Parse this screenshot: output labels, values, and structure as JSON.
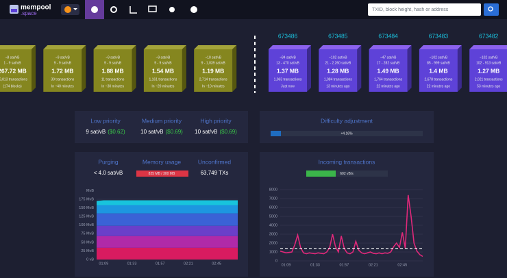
{
  "header": {
    "logo": {
      "name": "mempool",
      "suffix": ".space"
    },
    "search_placeholder": "TXID, block height, hash or address"
  },
  "mempool_blocks": [
    {
      "fee": "~8 sat/vB",
      "range": "1 - 9 sat/vB",
      "size": "267.72 MB",
      "txs": "59,813 transactions",
      "time": "(174 blocks)"
    },
    {
      "fee": "~9 sat/vB",
      "range": "9 - 9 sat/vB",
      "size": "1.72 MB",
      "txs": "30 transactions",
      "time": "In ~40 minutes"
    },
    {
      "fee": "~9 sat/vB",
      "range": "9 - 9 sat/vB",
      "size": "1.88 MB",
      "txs": "11 transactions",
      "time": "In ~30 minutes"
    },
    {
      "fee": "~9 sat/vB",
      "range": "9 - 9 sat/vB",
      "size": "1.54 MB",
      "txs": "1,161 transactions",
      "time": "In ~20 minutes"
    },
    {
      "fee": "~10 sat/vB",
      "range": "9 - 1,039 sat/vB",
      "size": "1.19 MB",
      "txs": "2,714 transactions",
      "time": "In ~10 minutes"
    }
  ],
  "blocks": [
    {
      "height": "673486",
      "fee": "~84 sat/vB",
      "range": "13 - 470 sat/vB",
      "size": "1.37 MB",
      "txs": "1,063 transactions",
      "time": "Just now"
    },
    {
      "height": "673485",
      "fee": "~102 sat/vB",
      "range": "21 - 2,260 sat/vB",
      "size": "1.28 MB",
      "txs": "1,084 transactions",
      "time": "13 minutes ago"
    },
    {
      "height": "673484",
      "fee": "~47 sat/vB",
      "range": "17 - 282 sat/vB",
      "size": "1.49 MB",
      "txs": "1,764 transactions",
      "time": "22 minutes ago"
    },
    {
      "height": "673483",
      "fee": "~102 sat/vB",
      "range": "85 - 999 sat/vB",
      "size": "1.4 MB",
      "txs": "2,678 transactions",
      "time": "22 minutes ago"
    },
    {
      "height": "673482",
      "fee": "~102 sat/vB",
      "range": "102 - 913 sat/vB",
      "size": "1.27 MB",
      "txs": "2,021 transactions",
      "time": "53 minutes ago"
    }
  ],
  "fees": [
    {
      "label": "Low priority",
      "value": "9 sat/vB",
      "fiat": "($0.62)"
    },
    {
      "label": "Medium priority",
      "value": "10 sat/vB",
      "fiat": "($0.69)"
    },
    {
      "label": "High priority",
      "value": "10 sat/vB",
      "fiat": "($0.69)"
    }
  ],
  "difficulty": {
    "title": "Difficulty adjustment",
    "value": "+4.16%"
  },
  "mempool_stats": [
    {
      "label": "Purging",
      "value": "< 4.0 sat/vB"
    },
    {
      "label": "Memory usage",
      "value": "825 MB / 300 MB"
    },
    {
      "label": "Unconfirmed",
      "value": "63,749 TXs"
    }
  ],
  "incoming": {
    "title": "Incoming transactions",
    "value": "602 vB/s"
  },
  "chart_data": [
    {
      "type": "area",
      "stacked": true,
      "y_label": "MvB",
      "categories": [
        null,
        "01:09",
        null,
        null,
        null,
        "01:33",
        null,
        null,
        null,
        "01:57",
        null,
        null,
        null,
        "02:21",
        null,
        null,
        null,
        "02:45",
        null,
        null,
        null
      ],
      "series": [
        {
          "color": "#d81b60",
          "values": [
            34,
            34,
            34,
            34,
            34,
            34,
            34,
            34,
            34,
            34,
            34,
            34,
            34,
            34,
            34,
            34,
            34,
            34,
            34,
            34,
            34
          ]
        },
        {
          "color": "#b02aa8",
          "values": [
            34,
            34,
            34,
            34,
            34,
            34,
            34,
            34,
            34,
            34,
            34,
            34,
            34,
            34,
            34,
            34,
            34,
            34,
            34,
            34,
            34
          ]
        },
        {
          "color": "#6a3fc9",
          "values": [
            30,
            30,
            30,
            30,
            30,
            30,
            30,
            30,
            30,
            30,
            30,
            30,
            30,
            30,
            30,
            30,
            30,
            30,
            30,
            30,
            30
          ]
        },
        {
          "color": "#3a62d6",
          "values": [
            36,
            36,
            36,
            36,
            36,
            36,
            36,
            36,
            36,
            36,
            36,
            36,
            36,
            36,
            36,
            36,
            36,
            36,
            36,
            36,
            36
          ]
        },
        {
          "color": "#1d96e0",
          "values": [
            24,
            24,
            24,
            24,
            24,
            24,
            24,
            24,
            24,
            24,
            24,
            24,
            24,
            24,
            24,
            24,
            24,
            24,
            24,
            24,
            24
          ]
        },
        {
          "color": "#18c4dc",
          "values": [
            12,
            14,
            14,
            14,
            14,
            14,
            14,
            14,
            14,
            14,
            14,
            14,
            14,
            14,
            14,
            14,
            14,
            14,
            14,
            14,
            14
          ]
        }
      ],
      "ylim": [
        0,
        200
      ],
      "yticks": [
        {
          "value": 0,
          "label": "0 vB"
        },
        {
          "value": 25,
          "label": "25 MvB"
        },
        {
          "value": 50,
          "label": "50 MvB"
        },
        {
          "value": 75,
          "label": "75 MvB"
        },
        {
          "value": 100,
          "label": "100 MvB"
        },
        {
          "value": 125,
          "label": "125 MvB"
        },
        {
          "value": 150,
          "label": "150 MvB"
        },
        {
          "value": 175,
          "label": "175 MvB"
        }
      ],
      "grid": true
    },
    {
      "type": "line",
      "color": "#e0287a",
      "categories": [
        null,
        null,
        "01:09",
        null,
        null,
        null,
        null,
        null,
        null,
        null,
        null,
        null,
        "01:33",
        null,
        null,
        null,
        null,
        null,
        null,
        null,
        null,
        null,
        "01:57",
        null,
        null,
        null,
        null,
        null,
        null,
        null,
        null,
        null,
        "02:21",
        null,
        null,
        null,
        null,
        null,
        null,
        null,
        null,
        null,
        "02:45",
        null,
        null,
        null,
        null,
        null,
        null,
        null
      ],
      "values": [
        1100,
        1000,
        900,
        950,
        1000,
        1800,
        2900,
        1500,
        900,
        800,
        900,
        850,
        800,
        900,
        850,
        800,
        1000,
        1500,
        3000,
        1600,
        1000,
        2800,
        1400,
        900,
        800,
        1000,
        2200,
        1200,
        900,
        800,
        900,
        1000,
        850,
        800,
        900,
        800,
        900,
        850,
        1000,
        1600,
        2000,
        1500,
        3200,
        1400,
        7400,
        5000,
        2000,
        1100,
        700,
        500
      ],
      "reference_line": 1400,
      "ylim": [
        0,
        8000
      ],
      "yticks": [
        0,
        1000,
        2000,
        3000,
        4000,
        5000,
        6000,
        7000,
        8000
      ],
      "grid": true
    }
  ]
}
